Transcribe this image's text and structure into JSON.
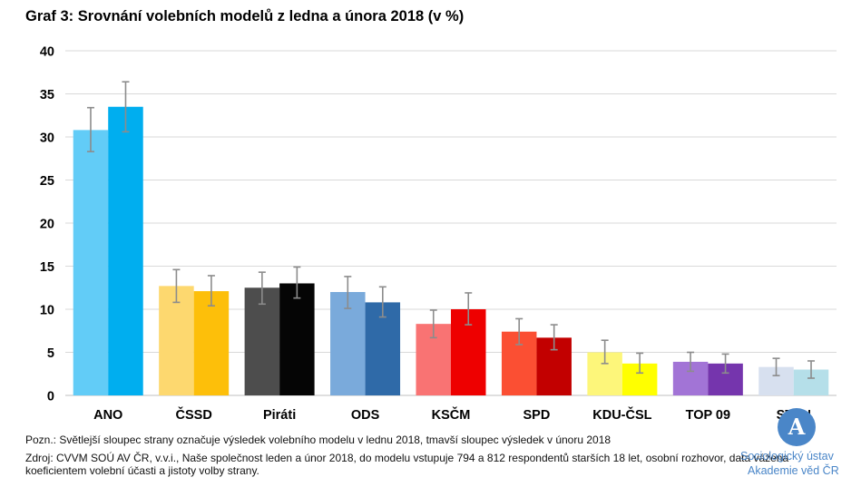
{
  "title": "Graf 3: Srovnání volebních modelů z ledna a února 2018 (v %)",
  "chart_data": {
    "type": "bar",
    "categories": [
      "ANO",
      "ČSSD",
      "Piráti",
      "ODS",
      "KSČM",
      "SPD",
      "KDU-ČSL",
      "TOP 09",
      "STAN"
    ],
    "series": [
      {
        "values": [
          30.8,
          12.7,
          12.5,
          12.0,
          8.3,
          7.4,
          5.0,
          3.9,
          3.3
        ],
        "err_low": [
          28.3,
          10.8,
          10.6,
          10.1,
          6.7,
          5.9,
          3.7,
          2.8,
          2.3
        ],
        "err_high": [
          33.4,
          14.6,
          14.3,
          13.8,
          9.9,
          8.9,
          6.4,
          5.0,
          4.3
        ],
        "colors": [
          "#62ccf7",
          "#fdd86f",
          "#4d4d4d",
          "#7aaadb",
          "#f97373",
          "#fb4f33",
          "#fdf67a",
          "#a274d6",
          "#d7e0ef"
        ]
      },
      {
        "values": [
          33.5,
          12.1,
          13.0,
          10.8,
          10.0,
          6.7,
          3.7,
          3.7,
          3.0
        ],
        "err_low": [
          30.6,
          10.4,
          11.3,
          9.1,
          8.2,
          5.3,
          2.6,
          2.6,
          2.0
        ],
        "err_high": [
          36.4,
          13.9,
          14.9,
          12.6,
          11.9,
          8.2,
          4.9,
          4.8,
          4.0
        ],
        "colors": [
          "#00aeef",
          "#fdbf0a",
          "#050505",
          "#2f6aa8",
          "#ee0000",
          "#c20000",
          "#ffff00",
          "#7535ad",
          "#b5dfe9"
        ]
      }
    ],
    "ylim": [
      0,
      40
    ],
    "yticks": [
      "0",
      "5",
      "10",
      "15",
      "20",
      "25",
      "30",
      "35",
      "40"
    ],
    "grid": true
  },
  "notes": {
    "line1": "Pozn.: Světlejší sloupec strany označuje výsledek volebního modelu v lednu 2018, tmavší sloupec výsledek v únoru 2018",
    "line2": "Zdroj: CVVM SOÚ AV ČR, v.v.i., Naše společnost leden a únor 2018, do modelu vstupuje 794 a 812 respondentů starších 18 let, osobní rozhovor, data vážena",
    "line3": "koeficientem volební účasti a jistoty volby strany."
  },
  "logo": {
    "line1": "Sociologický ústav",
    "line2": "Akademie věd ČR",
    "accent": "#4a86c8"
  }
}
